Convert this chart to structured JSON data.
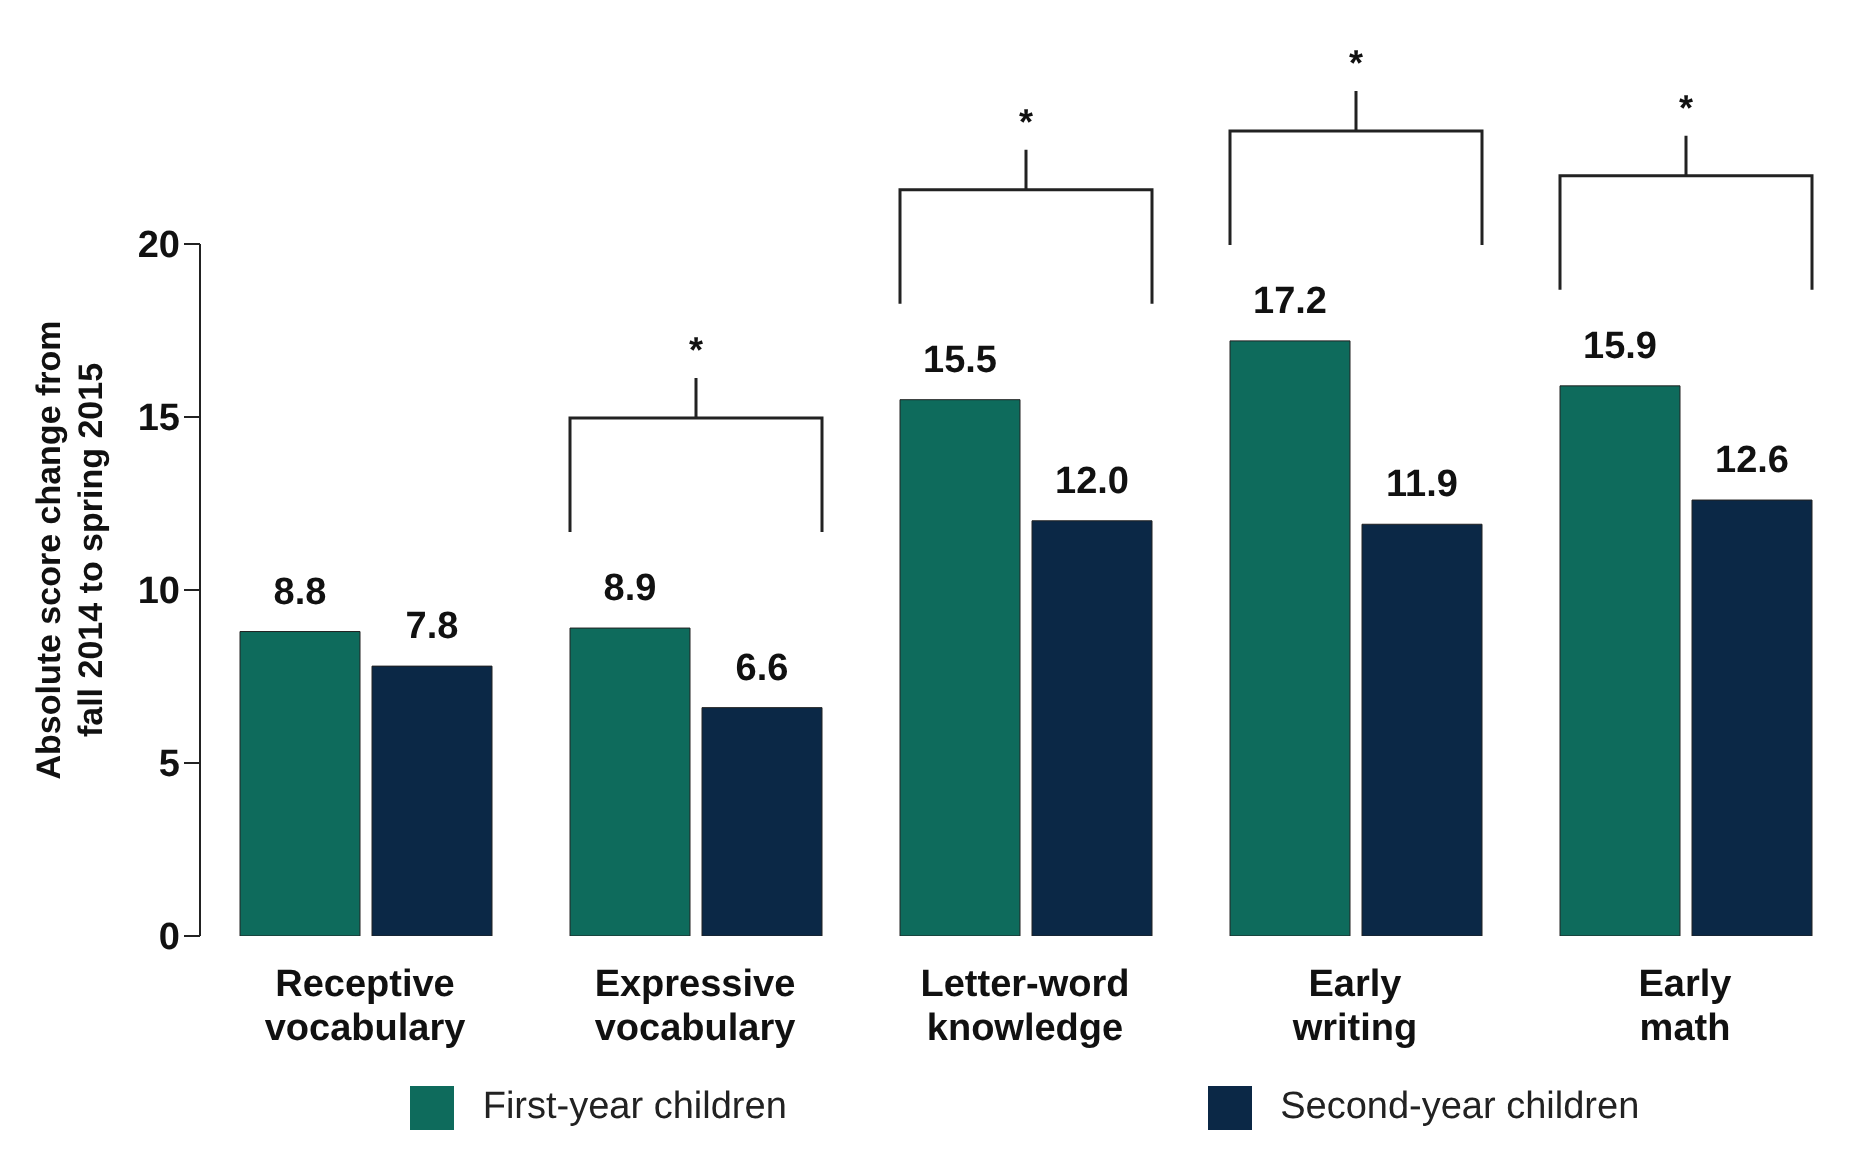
{
  "chart_data": {
    "type": "bar",
    "ylabel": "Absolute score change from fall 2014 to spring 2015",
    "categories": [
      "Receptive vocabulary",
      "Expressive vocabulary",
      "Letter-word knowledge",
      "Early writing",
      "Early math"
    ],
    "series": [
      {
        "name": "First-year children",
        "color": "#0e6b5c",
        "values": [
          8.8,
          8.9,
          15.5,
          17.2,
          15.9
        ],
        "value_labels": [
          "8.8",
          "8.9",
          "15.5",
          "17.2",
          "15.9"
        ]
      },
      {
        "name": "Second-year children",
        "color": "#0b2846",
        "values": [
          7.8,
          6.6,
          12.0,
          11.9,
          12.6
        ],
        "value_labels": [
          "7.8",
          "6.6",
          "12.0",
          "11.9",
          "12.6"
        ]
      }
    ],
    "ylim": [
      0,
      20
    ],
    "yticks": [
      0,
      5,
      10,
      15,
      20
    ],
    "grid": false,
    "legend": "bottom",
    "annotations": [
      "*",
      "*",
      "*",
      "*"
    ]
  }
}
